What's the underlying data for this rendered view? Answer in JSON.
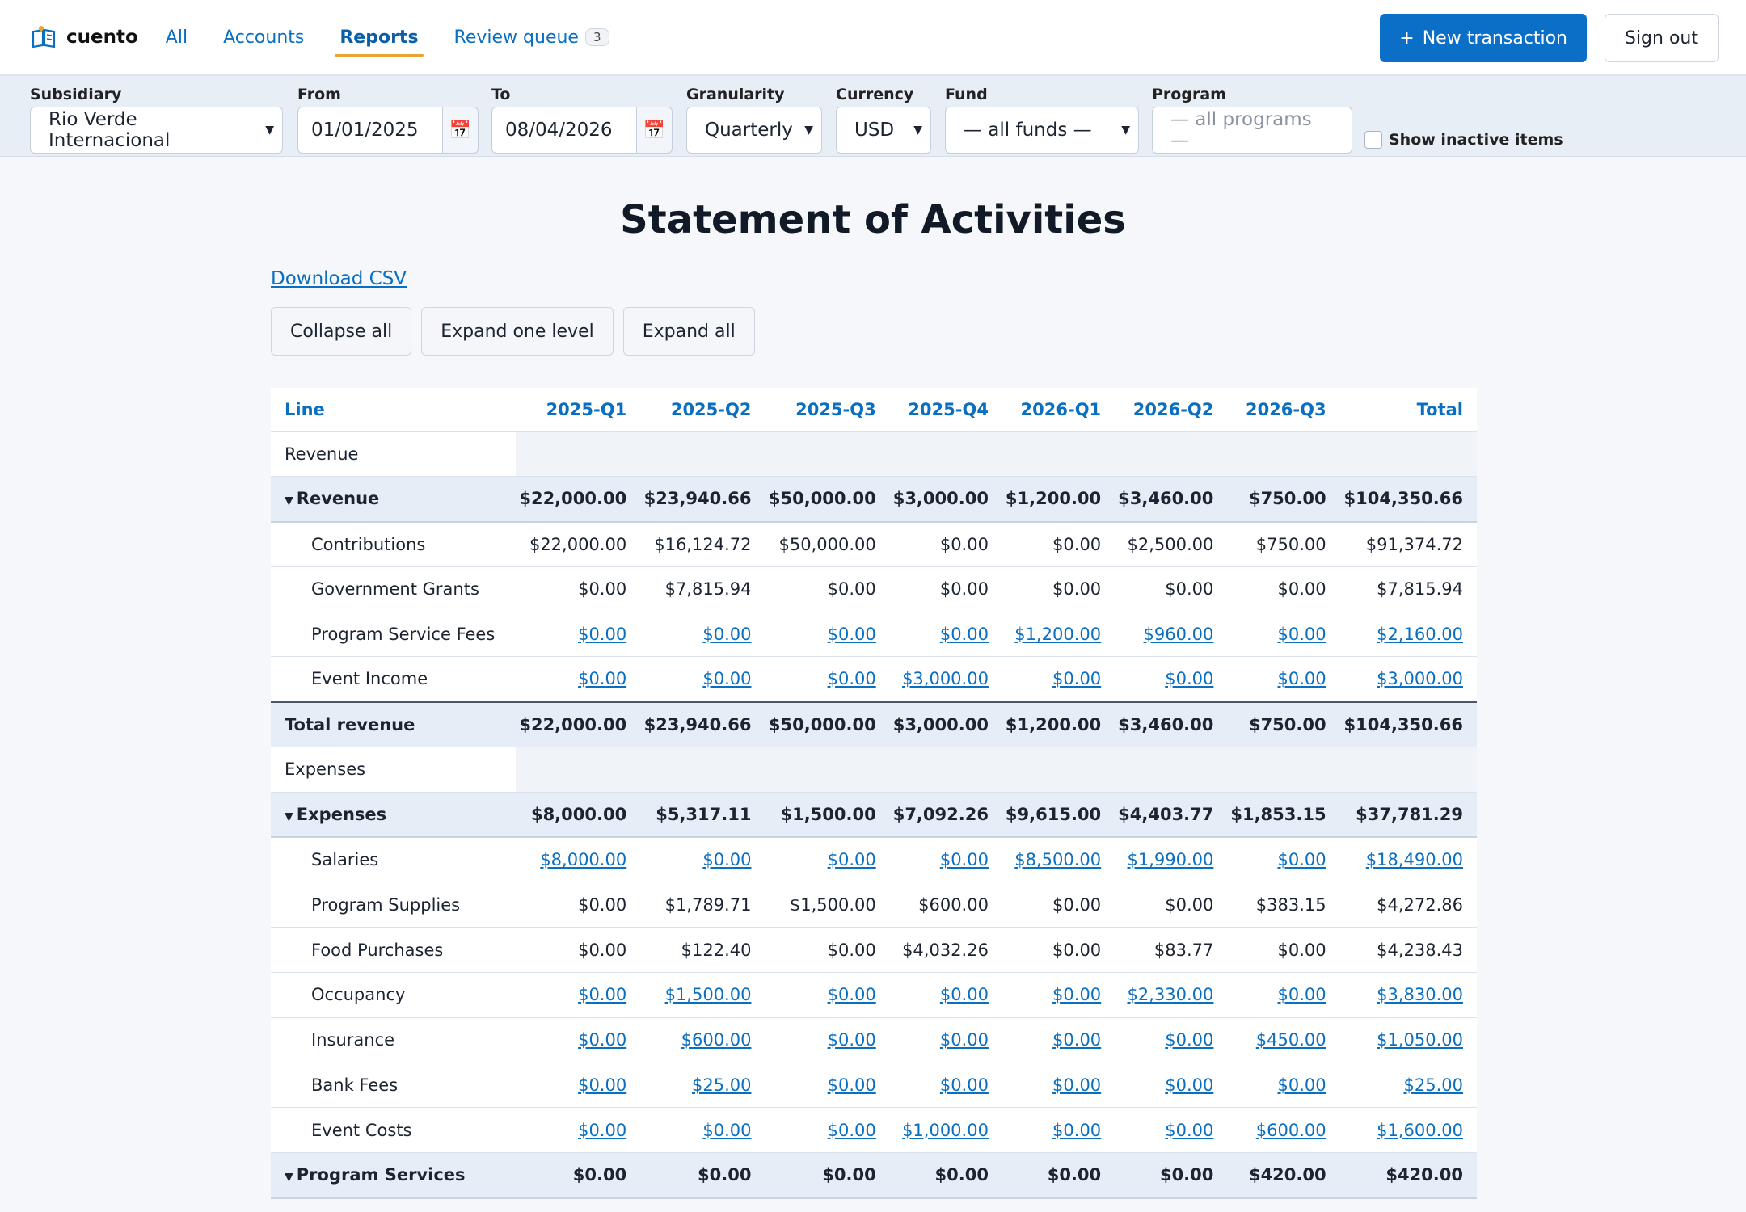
{
  "app": {
    "name": "cuento"
  },
  "nav": {
    "links": [
      {
        "label": "All"
      },
      {
        "label": "Accounts"
      },
      {
        "label": "Reports"
      },
      {
        "label": "Review queue",
        "badge": "3"
      }
    ],
    "new_transaction": "New transaction",
    "new_transaction_icon": "+",
    "sign_out": "Sign out"
  },
  "filters": {
    "subsidiary": {
      "label": "Subsidiary",
      "value": "Rio Verde Internacional"
    },
    "from": {
      "label": "From",
      "value": "01/01/2025"
    },
    "to": {
      "label": "To",
      "value": "08/04/2026"
    },
    "granularity": {
      "label": "Granularity",
      "value": "Quarterly"
    },
    "currency": {
      "label": "Currency",
      "value": "USD"
    },
    "fund": {
      "label": "Fund",
      "value": "— all funds —"
    },
    "program": {
      "label": "Program",
      "placeholder": "— all programs —"
    },
    "show_inactive": {
      "label": "Show inactive items",
      "checked": false
    }
  },
  "report": {
    "title": "Statement of Activities",
    "download_csv": "Download CSV",
    "buttons": {
      "collapse_all": "Collapse all",
      "expand_one": "Expand one level",
      "expand_all": "Expand all"
    },
    "columns": [
      "Line",
      "2025-Q1",
      "2025-Q2",
      "2025-Q3",
      "2025-Q4",
      "2026-Q1",
      "2026-Q2",
      "2026-Q3",
      "Total"
    ],
    "rows": [
      {
        "kind": "section",
        "label": "Revenue"
      },
      {
        "kind": "group",
        "label": "Revenue",
        "values": [
          "$22,000.00",
          "$23,940.66",
          "$50,000.00",
          "$3,000.00",
          "$1,200.00",
          "$3,460.00",
          "$750.00",
          "$104,350.66"
        ]
      },
      {
        "kind": "item",
        "label": "Contributions",
        "link": false,
        "values": [
          "$22,000.00",
          "$16,124.72",
          "$50,000.00",
          "$0.00",
          "$0.00",
          "$2,500.00",
          "$750.00",
          "$91,374.72"
        ]
      },
      {
        "kind": "item",
        "label": "Government Grants",
        "link": false,
        "values": [
          "$0.00",
          "$7,815.94",
          "$0.00",
          "$0.00",
          "$0.00",
          "$0.00",
          "$0.00",
          "$7,815.94"
        ]
      },
      {
        "kind": "item",
        "label": "Program Service Fees",
        "link": true,
        "values": [
          "$0.00",
          "$0.00",
          "$0.00",
          "$0.00",
          "$1,200.00",
          "$960.00",
          "$0.00",
          "$2,160.00"
        ]
      },
      {
        "kind": "item",
        "label": "Event Income",
        "link": true,
        "values": [
          "$0.00",
          "$0.00",
          "$0.00",
          "$3,000.00",
          "$0.00",
          "$0.00",
          "$0.00",
          "$3,000.00"
        ]
      },
      {
        "kind": "total",
        "label": "Total revenue",
        "values": [
          "$22,000.00",
          "$23,940.66",
          "$50,000.00",
          "$3,000.00",
          "$1,200.00",
          "$3,460.00",
          "$750.00",
          "$104,350.66"
        ]
      },
      {
        "kind": "section",
        "label": "Expenses"
      },
      {
        "kind": "group",
        "label": "Expenses",
        "values": [
          "$8,000.00",
          "$5,317.11",
          "$1,500.00",
          "$7,092.26",
          "$9,615.00",
          "$4,403.77",
          "$1,853.15",
          "$37,781.29"
        ]
      },
      {
        "kind": "item",
        "label": "Salaries",
        "link": true,
        "values": [
          "$8,000.00",
          "$0.00",
          "$0.00",
          "$0.00",
          "$8,500.00",
          "$1,990.00",
          "$0.00",
          "$18,490.00"
        ]
      },
      {
        "kind": "item",
        "label": "Program Supplies",
        "link": false,
        "values": [
          "$0.00",
          "$1,789.71",
          "$1,500.00",
          "$600.00",
          "$0.00",
          "$0.00",
          "$383.15",
          "$4,272.86"
        ]
      },
      {
        "kind": "item",
        "label": "Food Purchases",
        "link": false,
        "values": [
          "$0.00",
          "$122.40",
          "$0.00",
          "$4,032.26",
          "$0.00",
          "$83.77",
          "$0.00",
          "$4,238.43"
        ]
      },
      {
        "kind": "item",
        "label": "Occupancy",
        "link": true,
        "values": [
          "$0.00",
          "$1,500.00",
          "$0.00",
          "$0.00",
          "$0.00",
          "$2,330.00",
          "$0.00",
          "$3,830.00"
        ]
      },
      {
        "kind": "item",
        "label": "Insurance",
        "link": true,
        "values": [
          "$0.00",
          "$600.00",
          "$0.00",
          "$0.00",
          "$0.00",
          "$0.00",
          "$450.00",
          "$1,050.00"
        ]
      },
      {
        "kind": "item",
        "label": "Bank Fees",
        "link": true,
        "values": [
          "$0.00",
          "$25.00",
          "$0.00",
          "$0.00",
          "$0.00",
          "$0.00",
          "$0.00",
          "$25.00"
        ]
      },
      {
        "kind": "item",
        "label": "Event Costs",
        "link": true,
        "values": [
          "$0.00",
          "$0.00",
          "$0.00",
          "$1,000.00",
          "$0.00",
          "$0.00",
          "$600.00",
          "$1,600.00"
        ]
      },
      {
        "kind": "subgroup",
        "label": "Program Services",
        "values": [
          "$0.00",
          "$0.00",
          "$0.00",
          "$0.00",
          "$0.00",
          "$0.00",
          "$420.00",
          "$420.00"
        ]
      }
    ]
  },
  "colors": {
    "accent": "#0b6fc1",
    "primary_button": "#0b6fc8",
    "active_underline": "#e8a531"
  }
}
